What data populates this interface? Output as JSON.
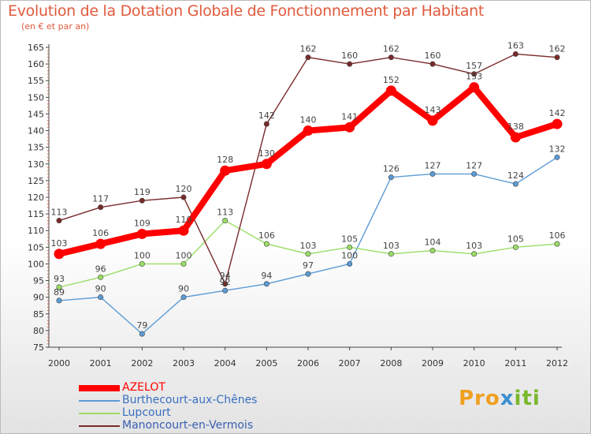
{
  "chart_data": {
    "type": "line",
    "title": "Evolution de la Dotation Globale de Fonctionnement par Habitant",
    "subtitle": "(en € et par an)",
    "x": [
      "2000",
      "2001",
      "2002",
      "2003",
      "2004",
      "2005",
      "2006",
      "2007",
      "2008",
      "2009",
      "2010",
      "2011",
      "2012"
    ],
    "yticks": [
      "75",
      "80",
      "85",
      "90",
      "95",
      "100",
      "105",
      "110",
      "115",
      "120",
      "125",
      "130",
      "135",
      "140",
      "145",
      "150",
      "155",
      "160",
      "165"
    ],
    "ylim": [
      75,
      165
    ],
    "grid": false,
    "legend_position": "bottom-left",
    "series": [
      {
        "name": "AZELOT",
        "color": "#ff0000",
        "values": [
          103,
          106,
          109,
          110,
          128,
          130,
          140,
          141,
          152,
          143,
          153,
          138,
          142
        ],
        "labels": [
          "103",
          "106",
          "109",
          "110",
          "128",
          "130",
          "140",
          "141",
          "152",
          "143",
          "153",
          "138",
          "142"
        ]
      },
      {
        "name": "Burthecourt-aux-Chênes",
        "color": "#5b9bd5",
        "values": [
          89,
          90,
          79,
          90,
          92,
          94,
          97,
          100,
          126,
          127,
          127,
          124,
          132
        ],
        "labels": [
          "89",
          "90",
          "79",
          "90",
          "92",
          "94",
          "97",
          "100",
          "126",
          "127",
          "127",
          "124",
          "132"
        ]
      },
      {
        "name": "Lupcourt",
        "color": "#99dd66",
        "values": [
          93,
          96,
          100,
          100,
          113,
          106,
          103,
          105,
          103,
          104,
          103,
          105,
          106
        ],
        "labels": [
          "93",
          "96",
          "100",
          "100",
          "113",
          "106",
          "103",
          "105",
          "103",
          "104",
          "103",
          "105",
          "106"
        ]
      },
      {
        "name": "Manoncourt-en-Vermois",
        "color": "#7a2a2a",
        "values": [
          113,
          117,
          119,
          120,
          94,
          142,
          162,
          160,
          162,
          160,
          157,
          163,
          162
        ],
        "labels": [
          "113",
          "117",
          "119",
          "120",
          "94",
          "142",
          "162",
          "160",
          "162",
          "160",
          "157",
          "163",
          "162"
        ]
      }
    ]
  },
  "logo": {
    "p1": "Pro",
    "p2": "x",
    "p3": "iti"
  }
}
